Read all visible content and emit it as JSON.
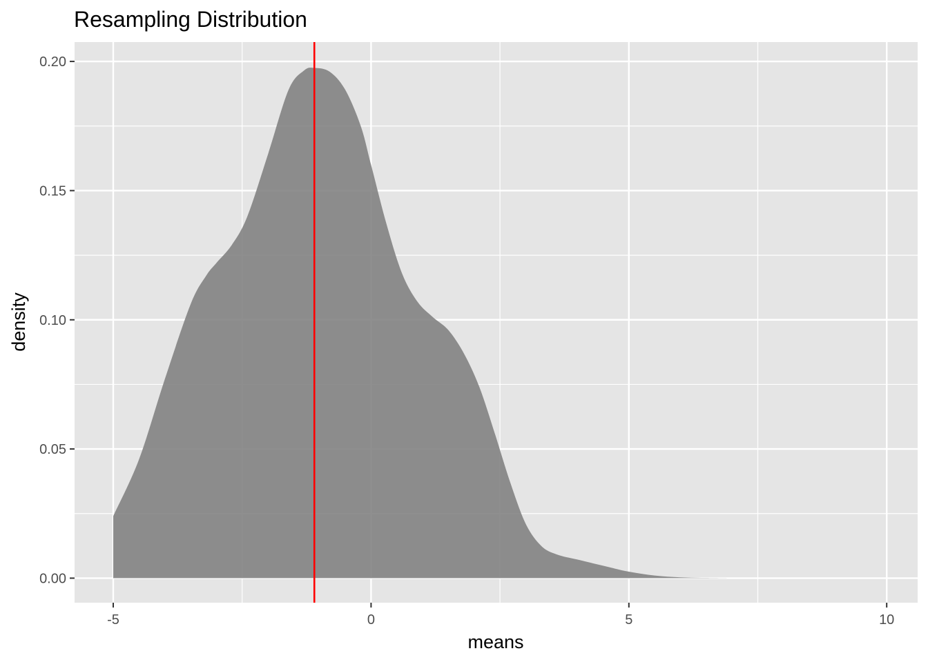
{
  "chart_data": {
    "type": "area",
    "title": "Resampling Distribution",
    "xlabel": "means",
    "ylabel": "density",
    "xlim": [
      -5.75,
      10.6
    ],
    "ylim": [
      -0.0095,
      0.2075
    ],
    "x_ticks": [
      -5,
      0,
      5,
      10
    ],
    "x_tick_labels": [
      "-5",
      "0",
      "5",
      "10"
    ],
    "y_ticks": [
      0.0,
      0.05,
      0.1,
      0.15,
      0.2
    ],
    "y_tick_labels": [
      "0.00",
      "0.05",
      "0.10",
      "0.15",
      "0.20"
    ],
    "grid": true,
    "legend": "none",
    "colors": {
      "panel_background": "#e5e5e5",
      "grid_line": "#ffffff",
      "area_fill": "#7f7f7f",
      "area_opacity": 0.88,
      "reference_line": "#ff0000",
      "tick_text": "#4d4d4d",
      "tick_mark": "#333333"
    },
    "series": [
      {
        "x": [
          -5.0,
          -4.5,
          -4.0,
          -3.5,
          -3.2,
          -3.0,
          -2.7,
          -2.4,
          -2.0,
          -1.6,
          -1.3,
          -1.1,
          -0.8,
          -0.5,
          -0.2,
          0.0,
          0.3,
          0.6,
          0.9,
          1.2,
          1.5,
          1.8,
          2.1,
          2.4,
          2.7,
          3.0,
          3.3,
          3.6,
          4.0,
          4.5,
          5.0,
          5.5,
          6.0,
          6.5,
          7.0
        ],
        "y": [
          0.024,
          0.046,
          0.077,
          0.106,
          0.117,
          0.122,
          0.129,
          0.14,
          0.164,
          0.189,
          0.1965,
          0.1975,
          0.196,
          0.189,
          0.175,
          0.16,
          0.137,
          0.118,
          0.107,
          0.101,
          0.096,
          0.087,
          0.074,
          0.056,
          0.037,
          0.021,
          0.0125,
          0.0092,
          0.0072,
          0.0048,
          0.0025,
          0.001,
          0.0003,
          0.0001,
          0.0
        ]
      }
    ],
    "vline": {
      "x": -1.1
    }
  }
}
